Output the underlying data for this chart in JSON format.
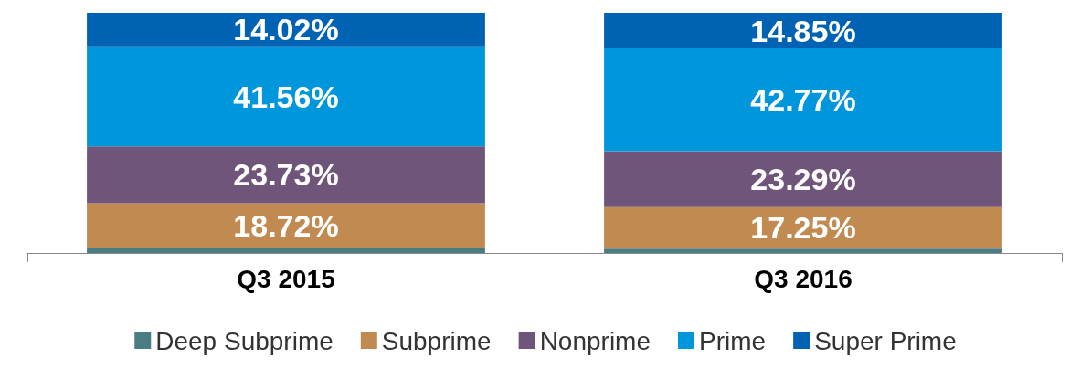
{
  "chart_data": {
    "type": "bar",
    "stacked": true,
    "categories": [
      "Q3 2015",
      "Q3 2016"
    ],
    "legend": "bottom",
    "series": [
      {
        "name": "Deep Subprime",
        "color": "#4a7c84",
        "values": [
          1.97,
          1.84
        ],
        "value_labels": [
          null,
          null
        ]
      },
      {
        "name": "Subprime",
        "color": "#c08a50",
        "values": [
          18.72,
          17.25
        ],
        "value_labels": [
          "18.72%",
          "17.25%"
        ]
      },
      {
        "name": "Nonprime",
        "color": "#6f5579",
        "values": [
          23.73,
          23.29
        ],
        "value_labels": [
          "23.73%",
          "23.29%"
        ]
      },
      {
        "name": "Prime",
        "color": "#0096db",
        "values": [
          41.56,
          42.77
        ],
        "value_labels": [
          "41.56%",
          "42.77%"
        ]
      },
      {
        "name": "Super Prime",
        "color": "#0062b2",
        "values": [
          14.02,
          14.85
        ],
        "value_labels": [
          "14.02%",
          "14.85%"
        ]
      }
    ]
  }
}
